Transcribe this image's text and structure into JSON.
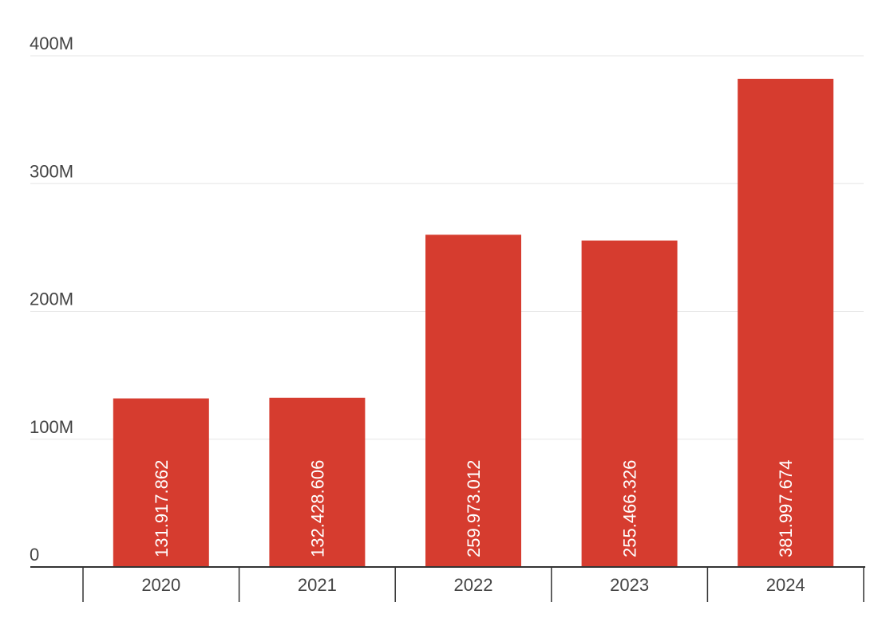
{
  "chart_data": {
    "type": "bar",
    "categories": [
      "2020",
      "2021",
      "2022",
      "2023",
      "2024"
    ],
    "values": [
      131917862,
      132428606,
      259973012,
      255466326,
      381997674
    ],
    "data_labels": [
      "131.917.862",
      "132.428.606",
      "259.973.012",
      "255.466.326",
      "381.997.674"
    ],
    "ylim": [
      0,
      400000000
    ],
    "yticks": [
      {
        "value": 0,
        "label": "0"
      },
      {
        "value": 100000000,
        "label": "100M"
      },
      {
        "value": 200000000,
        "label": "200M"
      },
      {
        "value": 300000000,
        "label": "300M"
      },
      {
        "value": 400000000,
        "label": "400M"
      }
    ],
    "grid": true,
    "legend": "none",
    "colors": {
      "bar": "#d63c2f",
      "grid": "#e6e6e6",
      "axis": "#333333",
      "text": "#444444"
    }
  }
}
